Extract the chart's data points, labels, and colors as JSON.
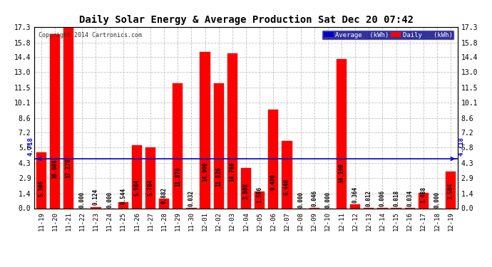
{
  "title": "Daily Solar Energy & Average Production Sat Dec 20 07:42",
  "copyright": "Copyright 2014 Cartronics.com",
  "average_value": 4.718,
  "categories": [
    "11-19",
    "11-20",
    "11-21",
    "11-22",
    "11-23",
    "11-24",
    "11-25",
    "11-26",
    "11-27",
    "11-28",
    "11-29",
    "11-30",
    "12-01",
    "12-02",
    "12-03",
    "12-04",
    "12-05",
    "12-06",
    "12-07",
    "12-08",
    "12-09",
    "12-10",
    "12-11",
    "12-12",
    "12-13",
    "12-14",
    "12-15",
    "12-16",
    "12-17",
    "12-18",
    "12-19"
  ],
  "values": [
    5.306,
    16.608,
    17.278,
    0.0,
    0.124,
    0.0,
    0.544,
    5.984,
    5.784,
    0.882,
    11.876,
    0.032,
    14.9,
    11.926,
    14.766,
    3.808,
    1.596,
    9.4,
    6.44,
    0.0,
    0.046,
    0.0,
    14.19,
    0.364,
    0.012,
    0.006,
    0.018,
    0.034,
    1.488,
    0.0,
    3.504
  ],
  "bar_color": "#ff0000",
  "bar_edge_color": "#cc0000",
  "average_line_color": "#0000cc",
  "background_color": "#ffffff",
  "plot_bg_color": "#ffffff",
  "grid_color": "#bbbbbb",
  "title_color": "#000000",
  "yticks": [
    0.0,
    1.4,
    2.9,
    4.3,
    5.8,
    7.2,
    8.6,
    10.1,
    11.5,
    13.0,
    14.4,
    15.8,
    17.3
  ],
  "legend_bg_color": "#000080",
  "legend_avg_color": "#0000cc",
  "legend_daily_color": "#ff0000",
  "avg_label": "4.718",
  "bar_width": 0.75
}
